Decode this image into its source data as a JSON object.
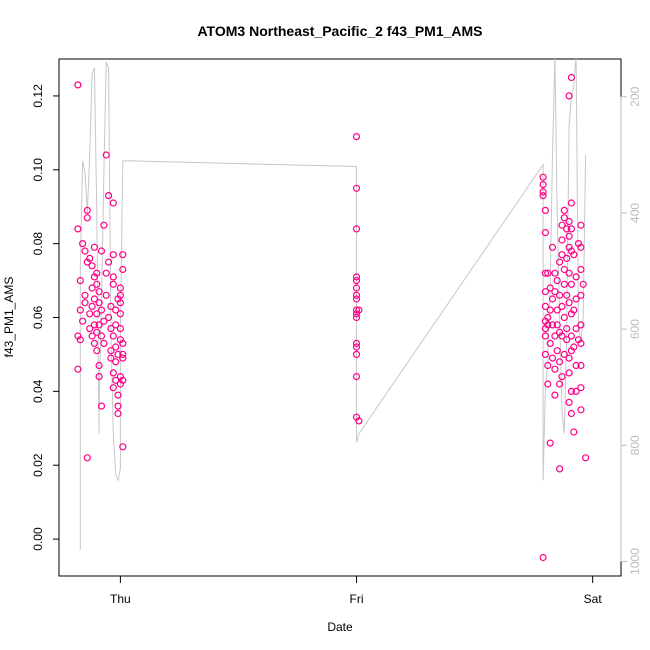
{
  "chart_data": {
    "type": "scatter",
    "title": "ATOM3 Northeast_Pacific_2 f43_PM1_AMS",
    "xlabel": "Date",
    "ylabel": "f43_PM1_AMS",
    "x_ticks": [
      {
        "label": "Thu",
        "value": 1.0
      },
      {
        "label": "Fri",
        "value": 2.0
      },
      {
        "label": "Sat",
        "value": 3.0
      }
    ],
    "x_units": "days",
    "xlim": [
      0.74,
      3.12
    ],
    "ylim": [
      -0.01,
      0.13
    ],
    "y_ticks": [
      0.0,
      0.02,
      0.04,
      0.06,
      0.08,
      0.1,
      0.12
    ],
    "y_tick_labels": [
      "0.00",
      "0.02",
      "0.04",
      "0.06",
      "0.08",
      "0.10",
      "0.12"
    ],
    "right_axis": {
      "ticks": [
        200,
        400,
        600,
        800,
        1000
      ],
      "tick_labels": [
        "200",
        "400",
        "600",
        "800",
        "1000"
      ],
      "inverted": true,
      "lim": [
        1025,
        135
      ],
      "color": "#bbbbbb"
    },
    "colors": {
      "points": "#ff0088",
      "line": "#c8c8c8"
    },
    "series": [
      {
        "marker": "circle",
        "color": "#ff0088",
        "points": [
          [
            0.82,
            0.123
          ],
          [
            0.82,
            0.055
          ],
          [
            0.83,
            0.07
          ],
          [
            0.83,
            0.062
          ],
          [
            0.83,
            0.054
          ],
          [
            0.82,
            0.084
          ],
          [
            0.82,
            0.046
          ],
          [
            0.84,
            0.08
          ],
          [
            0.84,
            0.059
          ],
          [
            0.85,
            0.078
          ],
          [
            0.85,
            0.066
          ],
          [
            0.85,
            0.064
          ],
          [
            0.86,
            0.089
          ],
          [
            0.86,
            0.087
          ],
          [
            0.86,
            0.075
          ],
          [
            0.86,
            0.022
          ],
          [
            0.87,
            0.061
          ],
          [
            0.87,
            0.057
          ],
          [
            0.87,
            0.076
          ],
          [
            0.88,
            0.074
          ],
          [
            0.88,
            0.068
          ],
          [
            0.88,
            0.063
          ],
          [
            0.88,
            0.055
          ],
          [
            0.89,
            0.071
          ],
          [
            0.89,
            0.079
          ],
          [
            0.89,
            0.065
          ],
          [
            0.89,
            0.058
          ],
          [
            0.89,
            0.053
          ],
          [
            0.9,
            0.072
          ],
          [
            0.9,
            0.069
          ],
          [
            0.9,
            0.061
          ],
          [
            0.9,
            0.056
          ],
          [
            0.9,
            0.051
          ],
          [
            0.91,
            0.064
          ],
          [
            0.91,
            0.058
          ],
          [
            0.91,
            0.067
          ],
          [
            0.91,
            0.047
          ],
          [
            0.91,
            0.044
          ],
          [
            0.92,
            0.036
          ],
          [
            0.92,
            0.078
          ],
          [
            0.92,
            0.062
          ],
          [
            0.92,
            0.055
          ],
          [
            0.93,
            0.085
          ],
          [
            0.93,
            0.059
          ],
          [
            0.93,
            0.053
          ],
          [
            0.94,
            0.104
          ],
          [
            0.94,
            0.072
          ],
          [
            0.94,
            0.066
          ],
          [
            0.95,
            0.06
          ],
          [
            0.95,
            0.075
          ],
          [
            0.95,
            0.093
          ],
          [
            0.96,
            0.063
          ],
          [
            0.96,
            0.057
          ],
          [
            0.96,
            0.051
          ],
          [
            0.96,
            0.049
          ],
          [
            0.97,
            0.077
          ],
          [
            0.97,
            0.091
          ],
          [
            0.97,
            0.071
          ],
          [
            0.97,
            0.069
          ],
          [
            0.97,
            0.055
          ],
          [
            0.97,
            0.045
          ],
          [
            0.97,
            0.041
          ],
          [
            0.98,
            0.062
          ],
          [
            0.98,
            0.058
          ],
          [
            0.98,
            0.052
          ],
          [
            0.98,
            0.048
          ],
          [
            0.98,
            0.043
          ],
          [
            0.99,
            0.065
          ],
          [
            0.99,
            0.039
          ],
          [
            0.99,
            0.036
          ],
          [
            0.99,
            0.034
          ],
          [
            0.99,
            0.05
          ],
          [
            1.0,
            0.068
          ],
          [
            1.0,
            0.066
          ],
          [
            1.0,
            0.064
          ],
          [
            1.0,
            0.061
          ],
          [
            1.0,
            0.057
          ],
          [
            1.0,
            0.054
          ],
          [
            1.0,
            0.044
          ],
          [
            1.0,
            0.042
          ],
          [
            1.01,
            0.077
          ],
          [
            1.01,
            0.073
          ],
          [
            1.01,
            0.053
          ],
          [
            1.01,
            0.05
          ],
          [
            1.01,
            0.049
          ],
          [
            1.01,
            0.043
          ],
          [
            1.01,
            0.025
          ],
          [
            2.0,
            0.109
          ],
          [
            2.0,
            0.095
          ],
          [
            2.0,
            0.084
          ],
          [
            2.0,
            0.071
          ],
          [
            2.0,
            0.07
          ],
          [
            2.0,
            0.068
          ],
          [
            2.0,
            0.066
          ],
          [
            2.0,
            0.065
          ],
          [
            2.0,
            0.062
          ],
          [
            2.0,
            0.061
          ],
          [
            2.0,
            0.06
          ],
          [
            2.0,
            0.053
          ],
          [
            2.0,
            0.052
          ],
          [
            2.0,
            0.05
          ],
          [
            2.0,
            0.044
          ],
          [
            2.0,
            0.033
          ],
          [
            2.01,
            0.062
          ],
          [
            2.01,
            0.032
          ],
          [
            2.79,
            -0.005
          ],
          [
            2.79,
            0.098
          ],
          [
            2.79,
            0.096
          ],
          [
            2.79,
            0.094
          ],
          [
            2.79,
            0.093
          ],
          [
            2.8,
            0.089
          ],
          [
            2.8,
            0.083
          ],
          [
            2.8,
            0.072
          ],
          [
            2.8,
            0.067
          ],
          [
            2.8,
            0.063
          ],
          [
            2.8,
            0.059
          ],
          [
            2.8,
            0.057
          ],
          [
            2.8,
            0.055
          ],
          [
            2.8,
            0.05
          ],
          [
            2.81,
            0.06
          ],
          [
            2.81,
            0.072
          ],
          [
            2.81,
            0.058
          ],
          [
            2.81,
            0.047
          ],
          [
            2.81,
            0.042
          ],
          [
            2.82,
            0.026
          ],
          [
            2.82,
            0.068
          ],
          [
            2.82,
            0.062
          ],
          [
            2.82,
            0.053
          ],
          [
            2.83,
            0.079
          ],
          [
            2.83,
            0.065
          ],
          [
            2.83,
            0.058
          ],
          [
            2.83,
            0.049
          ],
          [
            2.84,
            0.072
          ],
          [
            2.84,
            0.067
          ],
          [
            2.84,
            0.055
          ],
          [
            2.84,
            0.046
          ],
          [
            2.84,
            0.039
          ],
          [
            2.85,
            0.07
          ],
          [
            2.85,
            0.062
          ],
          [
            2.85,
            0.058
          ],
          [
            2.85,
            0.051
          ],
          [
            2.86,
            0.075
          ],
          [
            2.86,
            0.066
          ],
          [
            2.86,
            0.056
          ],
          [
            2.86,
            0.048
          ],
          [
            2.86,
            0.042
          ],
          [
            2.86,
            0.019
          ],
          [
            2.87,
            0.085
          ],
          [
            2.87,
            0.081
          ],
          [
            2.87,
            0.077
          ],
          [
            2.87,
            0.063
          ],
          [
            2.87,
            0.055
          ],
          [
            2.87,
            0.044
          ],
          [
            2.88,
            0.089
          ],
          [
            2.88,
            0.087
          ],
          [
            2.88,
            0.073
          ],
          [
            2.88,
            0.069
          ],
          [
            2.88,
            0.06
          ],
          [
            2.88,
            0.05
          ],
          [
            2.89,
            0.084
          ],
          [
            2.89,
            0.076
          ],
          [
            2.89,
            0.066
          ],
          [
            2.89,
            0.057
          ],
          [
            2.89,
            0.054
          ],
          [
            2.9,
            0.12
          ],
          [
            2.9,
            0.086
          ],
          [
            2.9,
            0.082
          ],
          [
            2.9,
            0.079
          ],
          [
            2.9,
            0.072
          ],
          [
            2.9,
            0.064
          ],
          [
            2.9,
            0.049
          ],
          [
            2.9,
            0.045
          ],
          [
            2.9,
            0.037
          ],
          [
            2.91,
            0.125
          ],
          [
            2.91,
            0.091
          ],
          [
            2.91,
            0.084
          ],
          [
            2.91,
            0.078
          ],
          [
            2.91,
            0.069
          ],
          [
            2.91,
            0.061
          ],
          [
            2.91,
            0.055
          ],
          [
            2.91,
            0.051
          ],
          [
            2.91,
            0.04
          ],
          [
            2.91,
            0.034
          ],
          [
            2.92,
            0.029
          ],
          [
            2.92,
            0.077
          ],
          [
            2.92,
            0.062
          ],
          [
            2.92,
            0.052
          ],
          [
            2.93,
            0.071
          ],
          [
            2.93,
            0.065
          ],
          [
            2.93,
            0.057
          ],
          [
            2.93,
            0.047
          ],
          [
            2.93,
            0.04
          ],
          [
            2.94,
            0.08
          ],
          [
            2.94,
            0.054
          ],
          [
            2.95,
            0.085
          ],
          [
            2.95,
            0.079
          ],
          [
            2.95,
            0.073
          ],
          [
            2.95,
            0.066
          ],
          [
            2.95,
            0.058
          ],
          [
            2.95,
            0.053
          ],
          [
            2.95,
            0.047
          ],
          [
            2.95,
            0.041
          ],
          [
            2.95,
            0.035
          ],
          [
            2.96,
            0.069
          ],
          [
            2.97,
            0.022
          ]
        ]
      },
      {
        "marker": "line",
        "axis": "right",
        "color": "#c8c8c8",
        "points": [
          [
            0.83,
            980
          ],
          [
            0.83,
            500
          ],
          [
            0.84,
            310
          ],
          [
            0.85,
            330
          ],
          [
            0.86,
            400
          ],
          [
            0.87,
            300
          ],
          [
            0.88,
            160
          ],
          [
            0.89,
            150
          ],
          [
            0.9,
            400
          ],
          [
            0.91,
            780
          ],
          [
            0.91,
            740
          ],
          [
            0.92,
            550
          ],
          [
            0.93,
            330
          ],
          [
            0.94,
            140
          ],
          [
            0.95,
            150
          ],
          [
            0.96,
            600
          ],
          [
            0.97,
            780
          ],
          [
            0.98,
            850
          ],
          [
            0.99,
            860
          ],
          [
            1.0,
            840
          ],
          [
            1.0,
            600
          ],
          [
            1.01,
            310
          ],
          [
            2.0,
            320
          ],
          [
            2.0,
            795
          ],
          [
            2.01,
            780
          ],
          [
            2.79,
            317
          ],
          [
            2.79,
            860
          ],
          [
            2.8,
            700
          ],
          [
            2.81,
            660
          ],
          [
            2.82,
            520
          ],
          [
            2.83,
            300
          ],
          [
            2.84,
            130
          ],
          [
            2.85,
            400
          ],
          [
            2.86,
            580
          ],
          [
            2.87,
            740
          ],
          [
            2.88,
            780
          ],
          [
            2.89,
            600
          ],
          [
            2.9,
            250
          ],
          [
            2.91,
            200
          ],
          [
            2.92,
            180
          ],
          [
            2.93,
            130
          ],
          [
            2.94,
            600
          ],
          [
            2.95,
            620
          ],
          [
            2.96,
            580
          ],
          [
            2.97,
            300
          ]
        ]
      }
    ]
  }
}
